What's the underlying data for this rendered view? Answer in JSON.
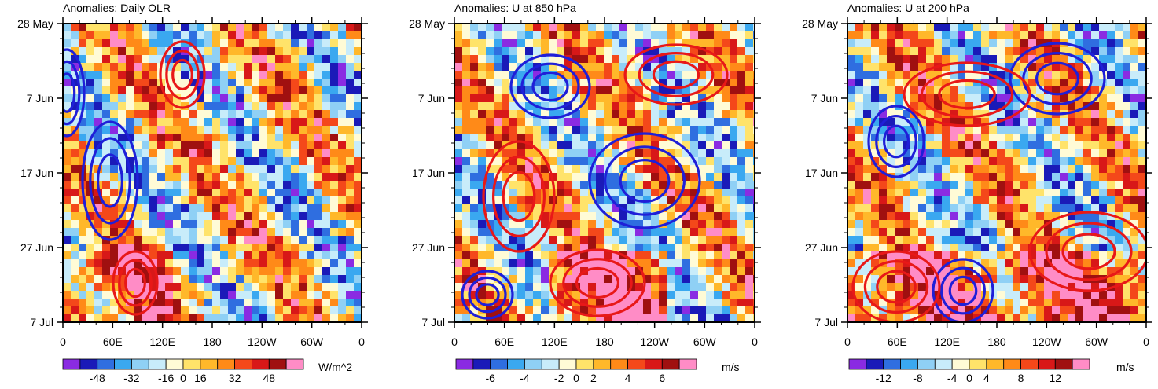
{
  "chart_data": [
    {
      "type": "heatmap",
      "title": "Anomalies: Daily OLR",
      "xlabel": "",
      "ylabel": "",
      "x_ticks": [
        "0",
        "60E",
        "120E",
        "180",
        "120W",
        "60W",
        "0"
      ],
      "y_ticks": [
        "28 May",
        "7 Jun",
        "17 Jun",
        "27 Jun",
        "7 Jul"
      ],
      "colorbar_labels": [
        "-48",
        "-32",
        "-16",
        "0",
        "16",
        "32",
        "48"
      ],
      "colorbar_min": -56,
      "colorbar_max": 56,
      "units": "W/m^2",
      "band_sign": 1,
      "contours": [
        {
          "color": "#1f1fd8",
          "center": [
            85,
            118
          ],
          "radius": [
            22,
            55
          ]
        },
        {
          "color": "#1f1fd8",
          "center": [
            140,
            230
          ],
          "radius": [
            35,
            75
          ]
        },
        {
          "color": "#e81818",
          "center": [
            232,
            95
          ],
          "radius": [
            28,
            42
          ]
        },
        {
          "color": "#e81818",
          "center": [
            172,
            360
          ],
          "radius": [
            28,
            40
          ]
        }
      ]
    },
    {
      "type": "heatmap",
      "title": "Anomalies: U at 850 hPa",
      "xlabel": "",
      "ylabel": "",
      "x_ticks": [
        "0",
        "60E",
        "120E",
        "180",
        "120W",
        "60W",
        "0"
      ],
      "y_ticks": [
        "28 May",
        "7 Jun",
        "17 Jun",
        "27 Jun",
        "7 Jul"
      ],
      "colorbar_labels": [
        "-6",
        "-4",
        "-2",
        "0",
        "2",
        "4",
        "6"
      ],
      "colorbar_min": -7,
      "colorbar_max": 7,
      "units": "m/s",
      "band_sign": -1,
      "contours": [
        {
          "color": "#1f1fd8",
          "center": [
            700,
            110
          ],
          "radius": [
            50,
            40
          ]
        },
        {
          "color": "#1f1fd8",
          "center": [
            820,
            230
          ],
          "radius": [
            70,
            60
          ]
        },
        {
          "color": "#1f1fd8",
          "center": [
            620,
            375
          ],
          "radius": [
            32,
            30
          ]
        },
        {
          "color": "#e81818",
          "center": [
            860,
            95
          ],
          "radius": [
            65,
            38
          ]
        },
        {
          "color": "#e81818",
          "center": [
            760,
            360
          ],
          "radius": [
            60,
            42
          ]
        },
        {
          "color": "#e81818",
          "center": [
            660,
            250
          ],
          "radius": [
            45,
            70
          ]
        }
      ]
    },
    {
      "type": "heatmap",
      "title": "Anomalies: U at 200 hPa",
      "xlabel": "",
      "ylabel": "",
      "x_ticks": [
        "0",
        "60E",
        "120E",
        "180",
        "120W",
        "60W",
        "0"
      ],
      "y_ticks": [
        "28 May",
        "7 Jun",
        "17 Jun",
        "27 Jun",
        "7 Jul"
      ],
      "colorbar_labels": [
        "-12",
        "-8",
        "-4",
        "0",
        "4",
        "8",
        "12"
      ],
      "colorbar_min": -14,
      "colorbar_max": 14,
      "units": "m/s",
      "band_sign": 1,
      "contours": [
        {
          "color": "#1f1fd8",
          "center": [
            1345,
            100
          ],
          "radius": [
            60,
            45
          ]
        },
        {
          "color": "#1f1fd8",
          "center": [
            1140,
            180
          ],
          "radius": [
            35,
            45
          ]
        },
        {
          "color": "#1f1fd8",
          "center": [
            1225,
            370
          ],
          "radius": [
            38,
            40
          ]
        },
        {
          "color": "#e81818",
          "center": [
            1140,
            365
          ],
          "radius": [
            55,
            45
          ]
        },
        {
          "color": "#e81818",
          "center": [
            1385,
            320
          ],
          "radius": [
            75,
            50
          ]
        },
        {
          "color": "#e81818",
          "center": [
            1230,
            120
          ],
          "radius": [
            80,
            40
          ]
        }
      ]
    }
  ]
}
